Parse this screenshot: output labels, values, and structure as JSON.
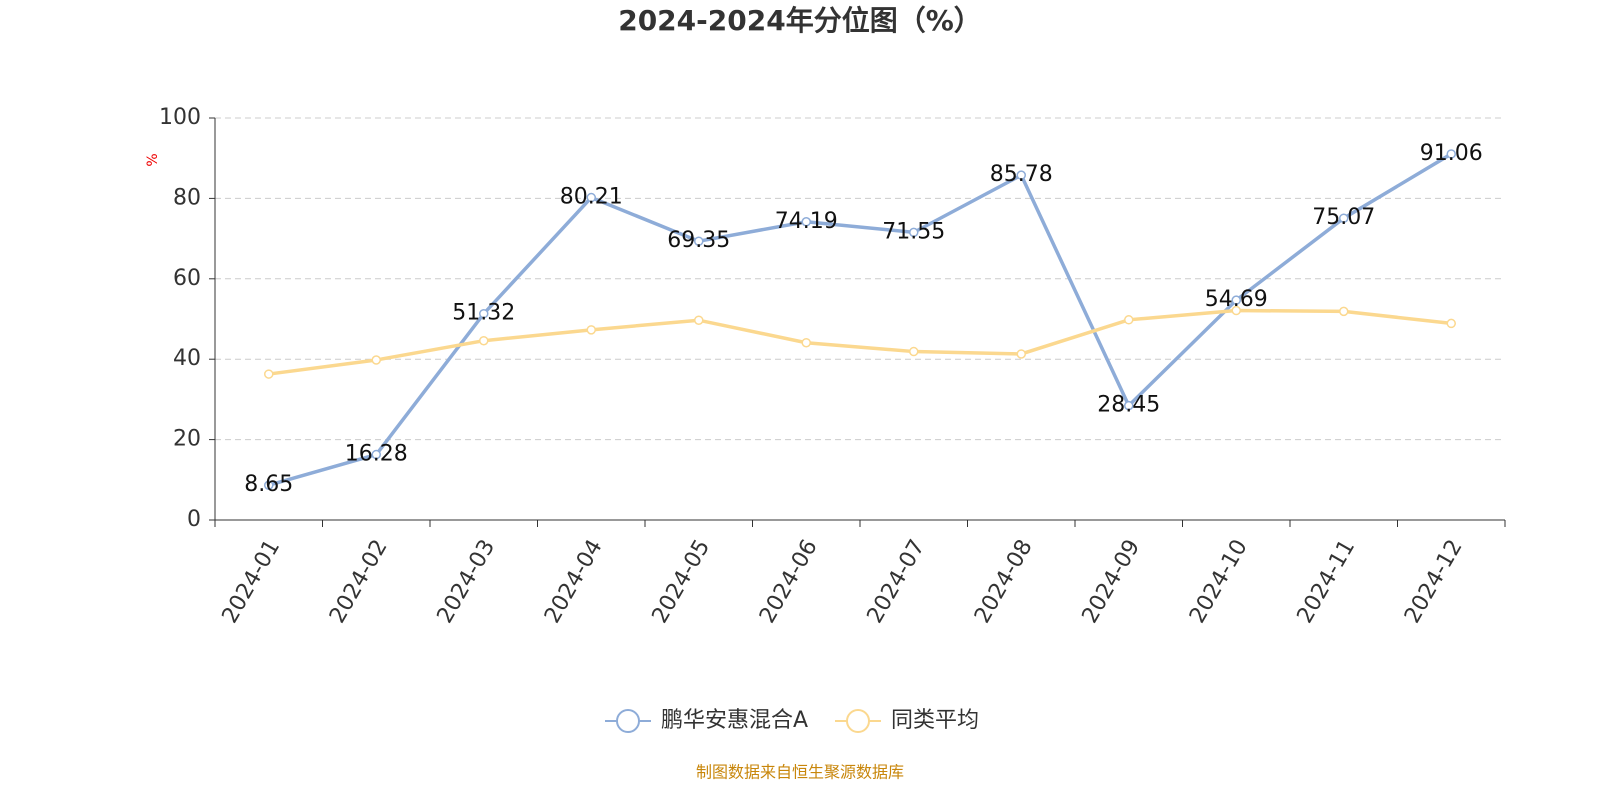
{
  "chart_data": {
    "type": "line",
    "title": "2024-2024年分位图（%）",
    "y_label": "%",
    "categories": [
      "2024-01",
      "2024-02",
      "2024-03",
      "2024-04",
      "2024-05",
      "2024-06",
      "2024-07",
      "2024-08",
      "2024-09",
      "2024-10",
      "2024-11",
      "2024-12"
    ],
    "series": [
      {
        "name": "鹏华安惠混合A",
        "color": "#8eacd8",
        "values": [
          8.65,
          16.28,
          51.32,
          80.21,
          69.35,
          74.19,
          71.55,
          85.78,
          28.45,
          54.69,
          75.07,
          91.06
        ]
      },
      {
        "name": "同类平均",
        "color": "#fbd88f",
        "values": [
          36.3,
          39.8,
          44.6,
          47.3,
          49.7,
          44.1,
          41.9,
          41.3,
          49.8,
          52.1,
          51.9,
          48.9
        ]
      }
    ],
    "ylim": [
      0,
      100
    ],
    "yticks": [
      0,
      20,
      40,
      60,
      80,
      100
    ],
    "grid": true,
    "source": "制图数据来自恒生聚源数据库"
  }
}
